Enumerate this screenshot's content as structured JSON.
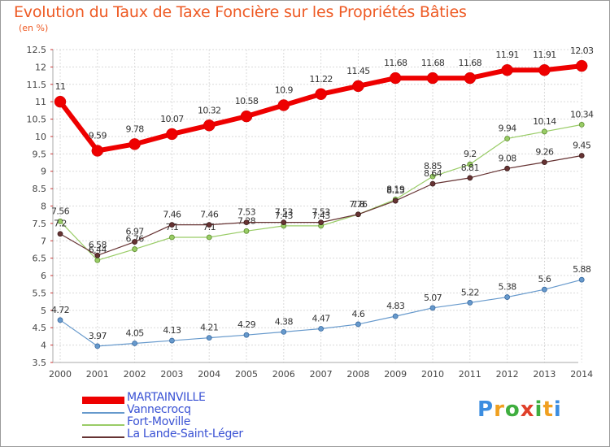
{
  "header": {
    "title": "Evolution du Taux de Taxe Foncière sur les Propriétés Bâties",
    "unit": "(en %)"
  },
  "brand": {
    "letters": [
      "P",
      "r",
      "o",
      "x",
      "i",
      "t",
      "i"
    ],
    "colors": [
      "#3b8de0",
      "#f0a020",
      "#3fae3f",
      "#e0402a",
      "#3fae3f",
      "#f0a020",
      "#3b8de0"
    ]
  },
  "chart_data": {
    "type": "line",
    "title": "Evolution du Taux de Taxe Foncière sur les Propriétés Bâties",
    "ylabel": "(en %)",
    "xlabel": "",
    "ylim": [
      3.5,
      12.5
    ],
    "yticks": [
      "3.5",
      "4",
      "4.5",
      "5",
      "5.5",
      "6",
      "6.5",
      "7",
      "7.5",
      "8",
      "8.5",
      "9",
      "9.5",
      "10",
      "10.5",
      "11",
      "11.5",
      "12",
      "12.5"
    ],
    "x": [
      "2000",
      "2001",
      "2002",
      "2003",
      "2004",
      "2005",
      "2006",
      "2007",
      "2008",
      "2009",
      "2010",
      "2011",
      "2012",
      "2013",
      "2014"
    ],
    "grid": true,
    "series": [
      {
        "name": "MARTAINVILLE",
        "color": "#ee0000",
        "values": [
          11,
          9.59,
          9.78,
          10.07,
          10.32,
          10.58,
          10.9,
          11.22,
          11.45,
          11.68,
          11.68,
          11.68,
          11.91,
          11.91,
          12.03
        ],
        "labels": [
          "11",
          "9.59",
          "9.78",
          "10.07",
          "10.32",
          "10.58",
          "10.9",
          "11.22",
          "11.45",
          "11.68",
          "11.68",
          "11.68",
          "11.91",
          "11.91",
          "12.03"
        ]
      },
      {
        "name": "Vannecrocq",
        "color": "#6699cc",
        "values": [
          4.72,
          3.97,
          4.05,
          4.13,
          4.21,
          4.29,
          4.38,
          4.47,
          4.6,
          4.83,
          5.07,
          5.22,
          5.38,
          5.6,
          5.88
        ],
        "labels": [
          "4.72",
          "3.97",
          "4.05",
          "4.13",
          "4.21",
          "4.29",
          "4.38",
          "4.47",
          "4.6",
          "4.83",
          "5.07",
          "5.22",
          "5.38",
          "5.6",
          "5.88"
        ]
      },
      {
        "name": "Fort-Moville",
        "color": "#99cc66",
        "values": [
          7.56,
          6.44,
          6.76,
          7.1,
          7.1,
          7.28,
          7.43,
          7.43,
          7.76,
          8.19,
          8.85,
          9.2,
          9.94,
          10.14,
          10.34
        ],
        "labels": [
          "7.56",
          "6.44",
          "6.76",
          "7.1",
          "7.1",
          "7.28",
          "7.43",
          "7.43",
          "7.76",
          "8.19",
          "8.85",
          "9.2",
          "9.94",
          "10.14",
          "10.34"
        ]
      },
      {
        "name": "La Lande-Saint-Léger",
        "color": "#663333",
        "values": [
          7.2,
          6.58,
          6.97,
          7.46,
          7.46,
          7.53,
          7.53,
          7.53,
          7.76,
          8.15,
          8.64,
          8.81,
          9.08,
          9.26,
          9.45
        ],
        "labels": [
          "7.2",
          "6.58",
          "6.97",
          "7.46",
          "7.46",
          "7.53",
          "7.53",
          "7.53",
          "7.8",
          "8.15",
          "8.64",
          "8.81",
          "9.08",
          "9.26",
          "9.45"
        ]
      }
    ]
  }
}
